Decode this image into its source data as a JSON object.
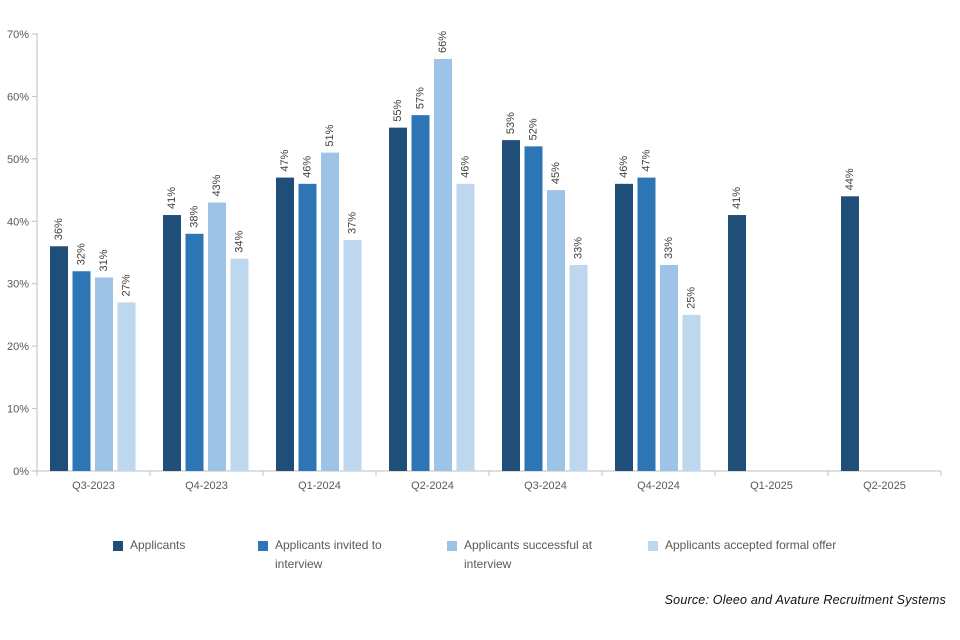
{
  "chart_data": {
    "type": "bar",
    "title": "",
    "xlabel": "",
    "ylabel": "",
    "ylim": [
      0,
      70
    ],
    "y_ticks": [
      "0%",
      "10%",
      "20%",
      "30%",
      "40%",
      "50%",
      "60%",
      "70%"
    ],
    "grid": false,
    "legend_position": "bottom",
    "categories": [
      "Q3-2023",
      "Q4-2023",
      "Q1-2024",
      "Q2-2024",
      "Q3-2024",
      "Q4-2024",
      "Q1-2025",
      "Q2-2025"
    ],
    "series": [
      {
        "name": "Applicants",
        "color": "#1F4E79",
        "values": [
          36,
          41,
          47,
          55,
          53,
          46,
          41,
          44
        ],
        "labels": [
          "36%",
          "41%",
          "47%",
          "55%",
          "53%",
          "46%",
          "41%",
          "44%"
        ]
      },
      {
        "name": "Applicants invited to interview",
        "color": "#2E75B6",
        "values": [
          32,
          38,
          46,
          57,
          52,
          47,
          null,
          null
        ],
        "labels": [
          "32%",
          "38%",
          "46%",
          "57%",
          "52%",
          "47%",
          null,
          null
        ]
      },
      {
        "name": "Applicants successful at interview",
        "color": "#9DC3E6",
        "values": [
          31,
          43,
          51,
          66,
          45,
          33,
          null,
          null
        ],
        "labels": [
          "31%",
          "43%",
          "51%",
          "66%",
          "45%",
          "33%",
          null,
          null
        ]
      },
      {
        "name": "Applicants accepted formal offer",
        "color": "#BDD7EE",
        "values": [
          27,
          34,
          37,
          46,
          33,
          25,
          null,
          null
        ],
        "labels": [
          "27%",
          "34%",
          "37%",
          "46%",
          "33%",
          "25%",
          null,
          null
        ]
      }
    ],
    "axis_color": "#BFBFBF",
    "tick_text_color": "#595959",
    "bar_label_color": "#3f3f3f",
    "source": "Source: Oleeo and Avature Recruitment Systems"
  }
}
